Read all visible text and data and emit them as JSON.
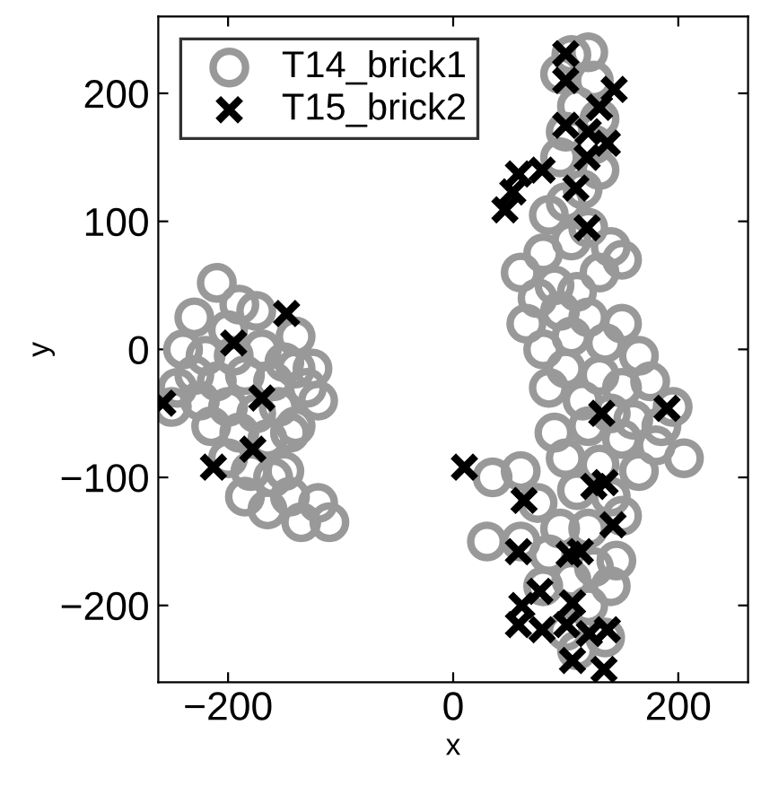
{
  "chart_data": {
    "type": "scatter",
    "xlabel": "x",
    "ylabel": "y",
    "xlim": [
      -262,
      262
    ],
    "ylim": [
      -260,
      260
    ],
    "xticks": [
      -200,
      0,
      200
    ],
    "yticks": [
      -200,
      -100,
      0,
      100,
      200
    ],
    "grid": false,
    "legend": "top left",
    "series": [
      {
        "name": "T14_brick1",
        "color": "#999999",
        "marker": "circle",
        "x": [
          -210,
          -190,
          -230,
          -175,
          -200,
          -240,
          -220,
          -195,
          -170,
          -150,
          -230,
          -210,
          -185,
          -160,
          -140,
          -245,
          -225,
          -200,
          -175,
          -155,
          -130,
          -215,
          -190,
          -165,
          -145,
          -120,
          -200,
          -180,
          -160,
          -185,
          -165,
          -145,
          -135,
          -120,
          -110,
          -150,
          -140,
          -125,
          -250,
          -140,
          105,
          120,
          95,
          125,
          110,
          130,
          100,
          125,
          95,
          130,
          115,
          100,
          85,
          120,
          105,
          140,
          80,
          150,
          60,
          130,
          90,
          110,
          75,
          95,
          120,
          150,
          65,
          105,
          135,
          80,
          165,
          100,
          130,
          150,
          175,
          85,
          115,
          140,
          160,
          195,
          120,
          90,
          150,
          180,
          205,
          100,
          130,
          60,
          165,
          185,
          35,
          75,
          110,
          140,
          95,
          120,
          150,
          30,
          60,
          85,
          125,
          145,
          105,
          140,
          80,
          120,
          110,
          135,
          100
        ],
        "values": [
          52,
          35,
          25,
          30,
          15,
          0,
          -5,
          -5,
          0,
          -10,
          -20,
          -25,
          -20,
          -25,
          -15,
          -30,
          -40,
          -45,
          -50,
          -45,
          -30,
          -60,
          -65,
          -70,
          -65,
          -40,
          -85,
          -95,
          -100,
          -115,
          -125,
          -115,
          -135,
          -120,
          -135,
          -95,
          -60,
          -15,
          -45,
          10,
          230,
          232,
          215,
          210,
          190,
          180,
          170,
          160,
          150,
          140,
          125,
          115,
          105,
          95,
          85,
          80,
          75,
          70,
          60,
          60,
          50,
          45,
          40,
          30,
          25,
          20,
          20,
          10,
          5,
          0,
          -5,
          -15,
          -20,
          -30,
          -25,
          -30,
          -40,
          -50,
          -55,
          -45,
          -60,
          -65,
          -70,
          -75,
          -85,
          -85,
          -90,
          -95,
          -95,
          -60,
          -100,
          -120,
          -110,
          -115,
          -140,
          -140,
          -130,
          -150,
          -150,
          -160,
          -170,
          -165,
          -180,
          -185,
          -185,
          -200,
          -235,
          -225,
          -220
        ]
      },
      {
        "name": "T15_brick2",
        "color": "#000000",
        "marker": "cross",
        "x": [
          -258,
          -195,
          -148,
          -170,
          -178,
          -213,
          10,
          100,
          143,
          130,
          137,
          119,
          58,
          79,
          53,
          46,
          109,
          119,
          100,
          100,
          120,
          132,
          190,
          63,
          125,
          135,
          142,
          58,
          103,
          113,
          77,
          61,
          58,
          79,
          101,
          121,
          137,
          106,
          134,
          106
        ],
        "values": [
          -42,
          5,
          28,
          -38,
          -78,
          -92,
          -92,
          231,
          203,
          189,
          161,
          150,
          137,
          140,
          123,
          109,
          126,
          95,
          210,
          175,
          170,
          -50,
          -46,
          -118,
          -107,
          -104,
          -137,
          -158,
          -160,
          -158,
          -189,
          -200,
          -215,
          -219,
          -215,
          -222,
          -219,
          -243,
          -250,
          -198
        ]
      }
    ]
  }
}
